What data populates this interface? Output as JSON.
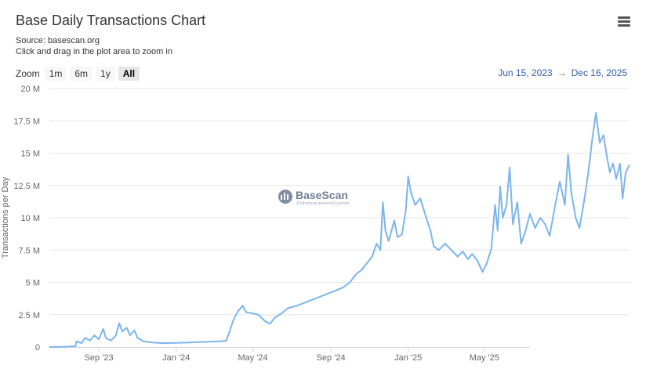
{
  "header": {
    "title": "Base Daily Transactions Chart",
    "source": "Source: basescan.org",
    "hint": "Click and drag in the plot area to zoom in",
    "menu_icon": "hamburger-menu-icon"
  },
  "zoom": {
    "label": "Zoom",
    "buttons": [
      "1m",
      "6m",
      "1y",
      "All"
    ],
    "active": "All"
  },
  "range": {
    "from": "Jun 15, 2023",
    "arrow": "→",
    "to": "Dec 16, 2025"
  },
  "watermark": {
    "name": "BaseScan",
    "tagline": "A Etherscan-powered Explorer"
  },
  "chart_data": {
    "type": "line",
    "title": "Base Daily Transactions Chart",
    "ylabel": "Transactions per Day",
    "ylim": [
      0,
      20000000
    ],
    "yticks": [
      {
        "v": 0,
        "label": "0"
      },
      {
        "v": 2500000,
        "label": "2.5 M"
      },
      {
        "v": 5000000,
        "label": "5 M"
      },
      {
        "v": 7500000,
        "label": "7.5 M"
      },
      {
        "v": 10000000,
        "label": "10 M"
      },
      {
        "v": 12500000,
        "label": "12.5 M"
      },
      {
        "v": 15000000,
        "label": "15 M"
      },
      {
        "v": 17500000,
        "label": "17.5 M"
      },
      {
        "v": 20000000,
        "label": "20 M"
      }
    ],
    "xrange": [
      "2023-06-15",
      "2025-12-16"
    ],
    "xticks": [
      {
        "date": "2023-09-01",
        "label": "Sep '23"
      },
      {
        "date": "2024-01-01",
        "label": "Jan '24"
      },
      {
        "date": "2024-05-01",
        "label": "May '24"
      },
      {
        "date": "2024-09-01",
        "label": "Sep '24"
      },
      {
        "date": "2025-01-01",
        "label": "Jan '25"
      },
      {
        "date": "2025-05-01",
        "label": "May '25"
      }
    ],
    "grid": true,
    "legend": "none",
    "line_color": "#7cb5ec",
    "series": [
      {
        "values": [
          [
            "2023-06-15",
            0
          ],
          [
            "2023-07-01",
            10000
          ],
          [
            "2023-07-15",
            30000
          ],
          [
            "2023-07-26",
            60000
          ],
          [
            "2023-07-28",
            450000
          ],
          [
            "2023-08-05",
            300000
          ],
          [
            "2023-08-10",
            700000
          ],
          [
            "2023-08-18",
            500000
          ],
          [
            "2023-08-25",
            900000
          ],
          [
            "2023-09-01",
            600000
          ],
          [
            "2023-09-08",
            1400000
          ],
          [
            "2023-09-12",
            700000
          ],
          [
            "2023-09-20",
            500000
          ],
          [
            "2023-09-28",
            900000
          ],
          [
            "2023-10-03",
            1850000
          ],
          [
            "2023-10-08",
            1200000
          ],
          [
            "2023-10-15",
            1500000
          ],
          [
            "2023-10-20",
            900000
          ],
          [
            "2023-10-27",
            1300000
          ],
          [
            "2023-11-01",
            700000
          ],
          [
            "2023-11-10",
            450000
          ],
          [
            "2023-11-25",
            350000
          ],
          [
            "2023-12-10",
            300000
          ],
          [
            "2024-01-01",
            320000
          ],
          [
            "2024-01-20",
            350000
          ],
          [
            "2024-02-05",
            380000
          ],
          [
            "2024-02-20",
            400000
          ],
          [
            "2024-03-10",
            450000
          ],
          [
            "2024-03-20",
            480000
          ],
          [
            "2024-03-25",
            1200000
          ],
          [
            "2024-04-01",
            2200000
          ],
          [
            "2024-04-08",
            2800000
          ],
          [
            "2024-04-15",
            3200000
          ],
          [
            "2024-04-20",
            2700000
          ],
          [
            "2024-05-01",
            2600000
          ],
          [
            "2024-05-10",
            2500000
          ],
          [
            "2024-05-20",
            2000000
          ],
          [
            "2024-05-28",
            1800000
          ],
          [
            "2024-06-05",
            2300000
          ],
          [
            "2024-06-15",
            2600000
          ],
          [
            "2024-06-25",
            3000000
          ],
          [
            "2024-07-10",
            3200000
          ],
          [
            "2024-07-25",
            3500000
          ],
          [
            "2024-08-05",
            3700000
          ],
          [
            "2024-08-20",
            4000000
          ],
          [
            "2024-09-05",
            4300000
          ],
          [
            "2024-09-20",
            4600000
          ],
          [
            "2024-10-01",
            5000000
          ],
          [
            "2024-10-10",
            5600000
          ],
          [
            "2024-10-20",
            6000000
          ],
          [
            "2024-10-28",
            6500000
          ],
          [
            "2024-11-05",
            7000000
          ],
          [
            "2024-11-12",
            8000000
          ],
          [
            "2024-11-18",
            7500000
          ],
          [
            "2024-11-22",
            11200000
          ],
          [
            "2024-11-26",
            9000000
          ],
          [
            "2024-12-01",
            8200000
          ],
          [
            "2024-12-10",
            9800000
          ],
          [
            "2024-12-15",
            8500000
          ],
          [
            "2024-12-22",
            8700000
          ],
          [
            "2024-12-28",
            10500000
          ],
          [
            "2025-01-01",
            13200000
          ],
          [
            "2025-01-05",
            12000000
          ],
          [
            "2025-01-12",
            11000000
          ],
          [
            "2025-01-20",
            11500000
          ],
          [
            "2025-01-28",
            10200000
          ],
          [
            "2025-02-05",
            9000000
          ],
          [
            "2025-02-10",
            7800000
          ],
          [
            "2025-02-18",
            7500000
          ],
          [
            "2025-02-28",
            8000000
          ],
          [
            "2025-03-10",
            7500000
          ],
          [
            "2025-03-20",
            7000000
          ],
          [
            "2025-03-28",
            7400000
          ],
          [
            "2025-04-05",
            6800000
          ],
          [
            "2025-04-12",
            7200000
          ],
          [
            "2025-04-20",
            6700000
          ],
          [
            "2025-04-28",
            5800000
          ],
          [
            "2025-05-05",
            6500000
          ],
          [
            "2025-05-12",
            7600000
          ],
          [
            "2025-05-18",
            11000000
          ],
          [
            "2025-05-22",
            9000000
          ],
          [
            "2025-05-26",
            12400000
          ],
          [
            "2025-05-30",
            10000000
          ],
          [
            "2025-06-05",
            11000000
          ],
          [
            "2025-06-10",
            13900000
          ],
          [
            "2025-06-15",
            9500000
          ],
          [
            "2025-06-22",
            11200000
          ],
          [
            "2025-06-28",
            8000000
          ],
          [
            "2025-07-05",
            9000000
          ],
          [
            "2025-07-12",
            10300000
          ],
          [
            "2025-07-20",
            9200000
          ],
          [
            "2025-07-28",
            10000000
          ],
          [
            "2025-08-05",
            9500000
          ],
          [
            "2025-08-12",
            8600000
          ],
          [
            "2025-08-20",
            10800000
          ],
          [
            "2025-08-28",
            12800000
          ],
          [
            "2025-09-05",
            11000000
          ],
          [
            "2025-09-10",
            14900000
          ],
          [
            "2025-09-15",
            12000000
          ],
          [
            "2025-09-22",
            10000000
          ],
          [
            "2025-09-28",
            9200000
          ],
          [
            "2025-10-05",
            11200000
          ],
          [
            "2025-10-12",
            13500000
          ],
          [
            "2025-10-18",
            16000000
          ],
          [
            "2025-10-24",
            18100000
          ],
          [
            "2025-10-30",
            15800000
          ],
          [
            "2025-11-05",
            16400000
          ],
          [
            "2025-11-10",
            14800000
          ],
          [
            "2025-11-15",
            13500000
          ],
          [
            "2025-11-20",
            14200000
          ],
          [
            "2025-11-25",
            13000000
          ],
          [
            "2025-12-01",
            14200000
          ],
          [
            "2025-12-05",
            11500000
          ],
          [
            "2025-12-10",
            13500000
          ],
          [
            "2025-12-16",
            14100000
          ]
        ]
      }
    ]
  }
}
